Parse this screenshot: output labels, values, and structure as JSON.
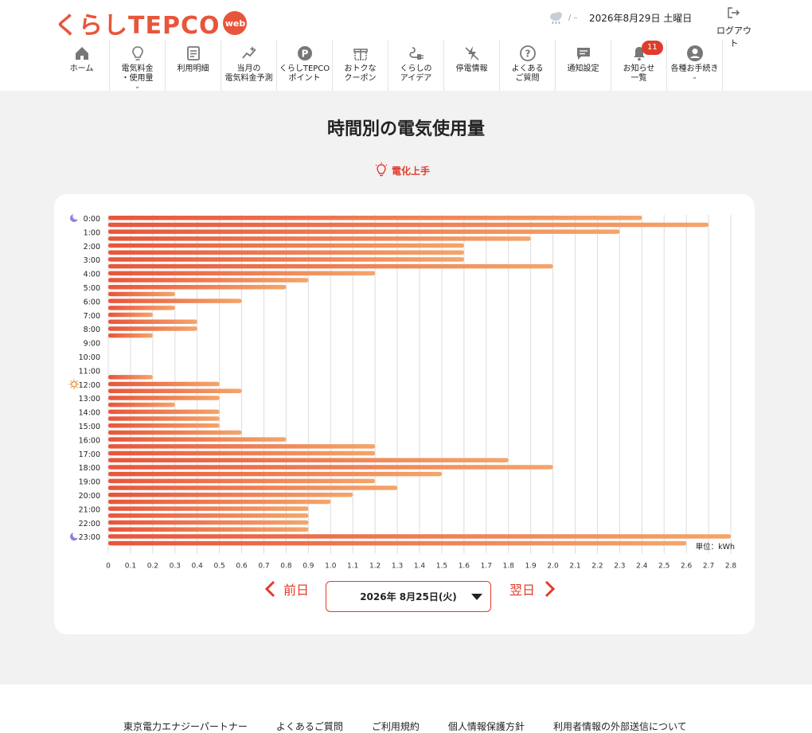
{
  "brand": {
    "logo_text": "くらしTEPCO",
    "badge": "web"
  },
  "weather": {
    "icon": "cloud-rain-icon",
    "temp": "/ –",
    "date": "2026年8月29日 土曜日"
  },
  "logout": {
    "label": "ログアウト",
    "icon": "logout-icon"
  },
  "nav": [
    {
      "label": "ホーム",
      "icon": "home-icon"
    },
    {
      "label": "電気料金\n・使用量",
      "icon": "bulb-icon",
      "dropdown": true
    },
    {
      "label": "利用明細",
      "icon": "receipt-icon"
    },
    {
      "label": "当月の\n電気料金予測",
      "icon": "sparkle-chart-icon"
    },
    {
      "label": "くらしTEPCO\nポイント",
      "icon": "point-icon"
    },
    {
      "label": "おトクな\nクーポン",
      "icon": "gift-icon"
    },
    {
      "label": "くらしの\nアイデア",
      "icon": "plug-icon"
    },
    {
      "label": "停電情報",
      "icon": "power-outage-icon"
    },
    {
      "label": "よくある\nご質問",
      "icon": "question-icon"
    },
    {
      "label": "通知設定",
      "icon": "message-icon"
    },
    {
      "label": "お知らせ\n一覧",
      "icon": "bell-icon",
      "badge": "11"
    },
    {
      "label": "各種お手続き",
      "icon": "account-icon",
      "dropdown": true
    }
  ],
  "page": {
    "title": "時間別の電気使用量",
    "tip_label": "電化上手",
    "unit_label": "単位：kWh"
  },
  "date_nav": {
    "prev": "前日",
    "next": "翌日",
    "selected_date": "2026年 8月25日(火)"
  },
  "footer": {
    "links": [
      "東京電力エナジーパートナー",
      "よくあるご質問",
      "ご利用規約",
      "個人情報保護方針",
      "利用者情報の外部送信について"
    ]
  },
  "colors": {
    "accent": "#e03c2b",
    "bar_start": "#e8553b",
    "bar_end": "#f4a56a",
    "background": "#f2f2f2"
  },
  "chart_data": {
    "type": "bar",
    "orientation": "horizontal",
    "categories": [
      "0:00",
      "1:00",
      "2:00",
      "3:00",
      "4:00",
      "5:00",
      "6:00",
      "7:00",
      "8:00",
      "9:00",
      "10:00",
      "11:00",
      "12:00",
      "13:00",
      "14:00",
      "15:00",
      "16:00",
      "17:00",
      "18:00",
      "19:00",
      "20:00",
      "21:00",
      "22:00",
      "23:00"
    ],
    "half_hour_values": [
      2.4,
      2.7,
      2.3,
      1.9,
      1.6,
      1.6,
      1.6,
      2.0,
      1.2,
      0.9,
      0.8,
      0.3,
      0.6,
      0.3,
      0.2,
      0.4,
      0.4,
      0.2,
      0,
      0,
      0,
      0,
      0,
      0.2,
      0.5,
      0.6,
      0.5,
      0.3,
      0.5,
      0.5,
      0.5,
      0.6,
      0.8,
      1.2,
      1.2,
      1.8,
      2.0,
      1.5,
      1.2,
      1.3,
      1.1,
      1.0,
      0.9,
      0.9,
      0.9,
      0.9,
      2.8,
      2.6
    ],
    "xlim": [
      0,
      2.8
    ],
    "xticks": [
      "0",
      "0.1",
      "0.2",
      "0.3",
      "0.4",
      "0.5",
      "0.6",
      "0.7",
      "0.8",
      "0.9",
      "1.0",
      "1.1",
      "1.2",
      "1.3",
      "1.4",
      "1.5",
      "1.6",
      "1.7",
      "1.8",
      "1.9",
      "2.0",
      "2.1",
      "2.2",
      "2.3",
      "2.4",
      "2.5",
      "2.6",
      "2.7",
      "2.8"
    ],
    "unit": "kWh",
    "grid": true,
    "row_icons": [
      {
        "row": "0:00",
        "icon": "moon-icon"
      },
      {
        "row": "12:00",
        "icon": "sun-icon"
      },
      {
        "row": "23:00",
        "icon": "moon-icon"
      }
    ]
  }
}
